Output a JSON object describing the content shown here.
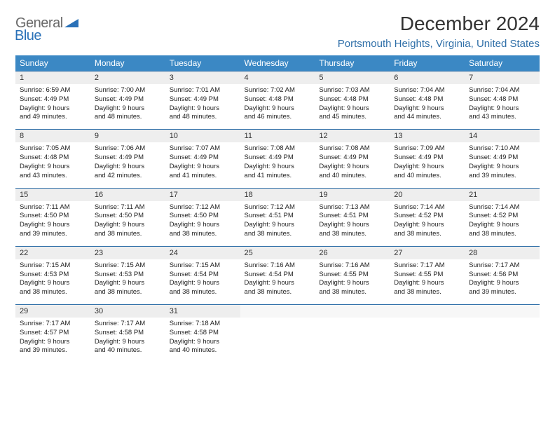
{
  "logo": {
    "text1": "General",
    "text2": "Blue"
  },
  "title": "December 2024",
  "location": "Portsmouth Heights, Virginia, United States",
  "colors": {
    "header_bg": "#3b88c4",
    "header_text": "#ffffff",
    "daynum_bg": "#eeeeee",
    "border_accent": "#2f6fa8",
    "logo_gray": "#6a6a6a",
    "logo_blue": "#2a71b8",
    "location_color": "#2f6fa8",
    "title_color": "#333333"
  },
  "weekdays": [
    "Sunday",
    "Monday",
    "Tuesday",
    "Wednesday",
    "Thursday",
    "Friday",
    "Saturday"
  ],
  "days": [
    {
      "n": "1",
      "sunrise": "6:59 AM",
      "sunset": "4:49 PM",
      "dl1": "9 hours",
      "dl2": "and 49 minutes."
    },
    {
      "n": "2",
      "sunrise": "7:00 AM",
      "sunset": "4:49 PM",
      "dl1": "9 hours",
      "dl2": "and 48 minutes."
    },
    {
      "n": "3",
      "sunrise": "7:01 AM",
      "sunset": "4:49 PM",
      "dl1": "9 hours",
      "dl2": "and 48 minutes."
    },
    {
      "n": "4",
      "sunrise": "7:02 AM",
      "sunset": "4:48 PM",
      "dl1": "9 hours",
      "dl2": "and 46 minutes."
    },
    {
      "n": "5",
      "sunrise": "7:03 AM",
      "sunset": "4:48 PM",
      "dl1": "9 hours",
      "dl2": "and 45 minutes."
    },
    {
      "n": "6",
      "sunrise": "7:04 AM",
      "sunset": "4:48 PM",
      "dl1": "9 hours",
      "dl2": "and 44 minutes."
    },
    {
      "n": "7",
      "sunrise": "7:04 AM",
      "sunset": "4:48 PM",
      "dl1": "9 hours",
      "dl2": "and 43 minutes."
    },
    {
      "n": "8",
      "sunrise": "7:05 AM",
      "sunset": "4:48 PM",
      "dl1": "9 hours",
      "dl2": "and 43 minutes."
    },
    {
      "n": "9",
      "sunrise": "7:06 AM",
      "sunset": "4:49 PM",
      "dl1": "9 hours",
      "dl2": "and 42 minutes."
    },
    {
      "n": "10",
      "sunrise": "7:07 AM",
      "sunset": "4:49 PM",
      "dl1": "9 hours",
      "dl2": "and 41 minutes."
    },
    {
      "n": "11",
      "sunrise": "7:08 AM",
      "sunset": "4:49 PM",
      "dl1": "9 hours",
      "dl2": "and 41 minutes."
    },
    {
      "n": "12",
      "sunrise": "7:08 AM",
      "sunset": "4:49 PM",
      "dl1": "9 hours",
      "dl2": "and 40 minutes."
    },
    {
      "n": "13",
      "sunrise": "7:09 AM",
      "sunset": "4:49 PM",
      "dl1": "9 hours",
      "dl2": "and 40 minutes."
    },
    {
      "n": "14",
      "sunrise": "7:10 AM",
      "sunset": "4:49 PM",
      "dl1": "9 hours",
      "dl2": "and 39 minutes."
    },
    {
      "n": "15",
      "sunrise": "7:11 AM",
      "sunset": "4:50 PM",
      "dl1": "9 hours",
      "dl2": "and 39 minutes."
    },
    {
      "n": "16",
      "sunrise": "7:11 AM",
      "sunset": "4:50 PM",
      "dl1": "9 hours",
      "dl2": "and 38 minutes."
    },
    {
      "n": "17",
      "sunrise": "7:12 AM",
      "sunset": "4:50 PM",
      "dl1": "9 hours",
      "dl2": "and 38 minutes."
    },
    {
      "n": "18",
      "sunrise": "7:12 AM",
      "sunset": "4:51 PM",
      "dl1": "9 hours",
      "dl2": "and 38 minutes."
    },
    {
      "n": "19",
      "sunrise": "7:13 AM",
      "sunset": "4:51 PM",
      "dl1": "9 hours",
      "dl2": "and 38 minutes."
    },
    {
      "n": "20",
      "sunrise": "7:14 AM",
      "sunset": "4:52 PM",
      "dl1": "9 hours",
      "dl2": "and 38 minutes."
    },
    {
      "n": "21",
      "sunrise": "7:14 AM",
      "sunset": "4:52 PM",
      "dl1": "9 hours",
      "dl2": "and 38 minutes."
    },
    {
      "n": "22",
      "sunrise": "7:15 AM",
      "sunset": "4:53 PM",
      "dl1": "9 hours",
      "dl2": "and 38 minutes."
    },
    {
      "n": "23",
      "sunrise": "7:15 AM",
      "sunset": "4:53 PM",
      "dl1": "9 hours",
      "dl2": "and 38 minutes."
    },
    {
      "n": "24",
      "sunrise": "7:15 AM",
      "sunset": "4:54 PM",
      "dl1": "9 hours",
      "dl2": "and 38 minutes."
    },
    {
      "n": "25",
      "sunrise": "7:16 AM",
      "sunset": "4:54 PM",
      "dl1": "9 hours",
      "dl2": "and 38 minutes."
    },
    {
      "n": "26",
      "sunrise": "7:16 AM",
      "sunset": "4:55 PM",
      "dl1": "9 hours",
      "dl2": "and 38 minutes."
    },
    {
      "n": "27",
      "sunrise": "7:17 AM",
      "sunset": "4:55 PM",
      "dl1": "9 hours",
      "dl2": "and 38 minutes."
    },
    {
      "n": "28",
      "sunrise": "7:17 AM",
      "sunset": "4:56 PM",
      "dl1": "9 hours",
      "dl2": "and 39 minutes."
    },
    {
      "n": "29",
      "sunrise": "7:17 AM",
      "sunset": "4:57 PM",
      "dl1": "9 hours",
      "dl2": "and 39 minutes."
    },
    {
      "n": "30",
      "sunrise": "7:17 AM",
      "sunset": "4:58 PM",
      "dl1": "9 hours",
      "dl2": "and 40 minutes."
    },
    {
      "n": "31",
      "sunrise": "7:18 AM",
      "sunset": "4:58 PM",
      "dl1": "9 hours",
      "dl2": "and 40 minutes."
    }
  ],
  "labels": {
    "sunrise": "Sunrise:",
    "sunset": "Sunset:",
    "daylight": "Daylight:"
  },
  "layout": {
    "start_weekday": 0,
    "total_cells": 35
  }
}
